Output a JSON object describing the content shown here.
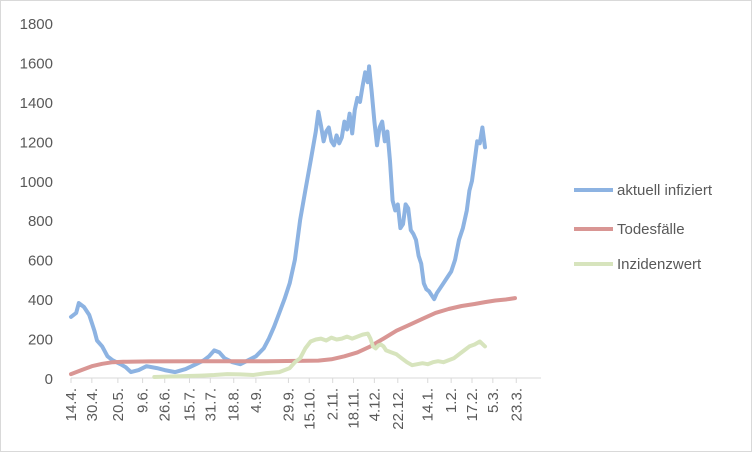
{
  "chart_data": {
    "type": "line",
    "title": "",
    "xlabel": "",
    "ylabel": "",
    "ylim": [
      0,
      1800
    ],
    "yticks": [
      0,
      200,
      400,
      600,
      800,
      1000,
      1200,
      1400,
      1600,
      1800
    ],
    "grid": false,
    "legend_position": "right",
    "x_tick_labels": [
      "14.4.",
      "30.4.",
      "20.5.",
      "9.6.",
      "26.6.",
      "15.7.",
      "31.7.",
      "18.8.",
      "4.9.",
      "29.9.",
      "15.10.",
      "2.11.",
      "18.11.",
      "4.12.",
      "22.12.",
      "14.1.",
      "1.2.",
      "17.2.",
      "5.3.",
      "23.3."
    ],
    "x_tick_index": [
      0,
      16,
      36,
      55,
      72,
      91,
      107,
      125,
      142,
      167,
      183,
      201,
      217,
      233,
      251,
      274,
      292,
      308,
      324,
      342
    ],
    "x_count": 362,
    "series": [
      {
        "name": "aktuell infiziert",
        "color": "#8db3e2",
        "points": [
          [
            0,
            310
          ],
          [
            4,
            330
          ],
          [
            6,
            380
          ],
          [
            10,
            360
          ],
          [
            14,
            320
          ],
          [
            16,
            280
          ],
          [
            18,
            240
          ],
          [
            20,
            190
          ],
          [
            24,
            160
          ],
          [
            28,
            110
          ],
          [
            32,
            90
          ],
          [
            38,
            70
          ],
          [
            42,
            55
          ],
          [
            46,
            30
          ],
          [
            52,
            40
          ],
          [
            58,
            60
          ],
          [
            66,
            50
          ],
          [
            72,
            40
          ],
          [
            80,
            30
          ],
          [
            88,
            45
          ],
          [
            96,
            70
          ],
          [
            102,
            90
          ],
          [
            106,
            110
          ],
          [
            110,
            140
          ],
          [
            114,
            130
          ],
          [
            118,
            100
          ],
          [
            124,
            80
          ],
          [
            130,
            70
          ],
          [
            136,
            90
          ],
          [
            142,
            110
          ],
          [
            148,
            150
          ],
          [
            152,
            200
          ],
          [
            156,
            260
          ],
          [
            160,
            330
          ],
          [
            164,
            400
          ],
          [
            168,
            480
          ],
          [
            172,
            600
          ],
          [
            176,
            800
          ],
          [
            180,
            950
          ],
          [
            184,
            1100
          ],
          [
            188,
            1250
          ],
          [
            190,
            1350
          ],
          [
            192,
            1280
          ],
          [
            194,
            1200
          ],
          [
            196,
            1250
          ],
          [
            198,
            1270
          ],
          [
            200,
            1200
          ],
          [
            202,
            1180
          ],
          [
            204,
            1230
          ],
          [
            206,
            1190
          ],
          [
            208,
            1220
          ],
          [
            210,
            1300
          ],
          [
            212,
            1260
          ],
          [
            214,
            1340
          ],
          [
            216,
            1240
          ],
          [
            218,
            1360
          ],
          [
            220,
            1420
          ],
          [
            222,
            1400
          ],
          [
            224,
            1480
          ],
          [
            226,
            1550
          ],
          [
            228,
            1500
          ],
          [
            229,
            1580
          ],
          [
            231,
            1450
          ],
          [
            233,
            1300
          ],
          [
            235,
            1180
          ],
          [
            237,
            1270
          ],
          [
            239,
            1300
          ],
          [
            241,
            1200
          ],
          [
            243,
            1250
          ],
          [
            245,
            1100
          ],
          [
            247,
            900
          ],
          [
            249,
            850
          ],
          [
            251,
            880
          ],
          [
            253,
            760
          ],
          [
            255,
            780
          ],
          [
            257,
            880
          ],
          [
            259,
            860
          ],
          [
            261,
            750
          ],
          [
            263,
            730
          ],
          [
            265,
            700
          ],
          [
            267,
            620
          ],
          [
            269,
            580
          ],
          [
            271,
            480
          ],
          [
            273,
            450
          ],
          [
            275,
            440
          ],
          [
            277,
            420
          ],
          [
            279,
            400
          ],
          [
            281,
            430
          ],
          [
            283,
            450
          ],
          [
            286,
            480
          ],
          [
            289,
            510
          ],
          [
            292,
            540
          ],
          [
            295,
            600
          ],
          [
            298,
            700
          ],
          [
            301,
            760
          ],
          [
            304,
            850
          ],
          [
            306,
            950
          ],
          [
            308,
            1000
          ],
          [
            310,
            1100
          ],
          [
            312,
            1200
          ],
          [
            314,
            1190
          ],
          [
            316,
            1270
          ],
          [
            318,
            1170
          ]
        ]
      },
      {
        "name": "Todesfälle",
        "color": "#d99694",
        "points": [
          [
            0,
            20
          ],
          [
            8,
            40
          ],
          [
            16,
            60
          ],
          [
            24,
            72
          ],
          [
            32,
            80
          ],
          [
            40,
            82
          ],
          [
            60,
            84
          ],
          [
            100,
            85
          ],
          [
            150,
            85
          ],
          [
            190,
            88
          ],
          [
            200,
            95
          ],
          [
            210,
            110
          ],
          [
            220,
            130
          ],
          [
            230,
            160
          ],
          [
            240,
            200
          ],
          [
            250,
            240
          ],
          [
            260,
            270
          ],
          [
            270,
            300
          ],
          [
            280,
            330
          ],
          [
            290,
            350
          ],
          [
            300,
            365
          ],
          [
            310,
            375
          ],
          [
            318,
            385
          ],
          [
            326,
            393
          ],
          [
            334,
            398
          ],
          [
            341,
            405
          ]
        ]
      },
      {
        "name": "Inzidenzwert",
        "color": "#d7e4bd",
        "points": [
          [
            64,
            5
          ],
          [
            80,
            8
          ],
          [
            100,
            12
          ],
          [
            110,
            15
          ],
          [
            120,
            20
          ],
          [
            130,
            18
          ],
          [
            140,
            15
          ],
          [
            150,
            25
          ],
          [
            160,
            30
          ],
          [
            168,
            50
          ],
          [
            172,
            80
          ],
          [
            176,
            100
          ],
          [
            180,
            150
          ],
          [
            184,
            185
          ],
          [
            188,
            195
          ],
          [
            192,
            200
          ],
          [
            196,
            190
          ],
          [
            200,
            205
          ],
          [
            204,
            195
          ],
          [
            208,
            200
          ],
          [
            212,
            210
          ],
          [
            216,
            200
          ],
          [
            220,
            210
          ],
          [
            224,
            220
          ],
          [
            228,
            225
          ],
          [
            230,
            200
          ],
          [
            232,
            160
          ],
          [
            234,
            150
          ],
          [
            236,
            165
          ],
          [
            238,
            170
          ],
          [
            240,
            160
          ],
          [
            242,
            140
          ],
          [
            246,
            130
          ],
          [
            250,
            120
          ],
          [
            254,
            100
          ],
          [
            258,
            80
          ],
          [
            262,
            65
          ],
          [
            266,
            70
          ],
          [
            270,
            75
          ],
          [
            274,
            70
          ],
          [
            278,
            80
          ],
          [
            282,
            85
          ],
          [
            286,
            80
          ],
          [
            290,
            90
          ],
          [
            294,
            100
          ],
          [
            298,
            120
          ],
          [
            302,
            140
          ],
          [
            306,
            160
          ],
          [
            310,
            170
          ],
          [
            314,
            185
          ],
          [
            318,
            160
          ]
        ]
      }
    ]
  }
}
